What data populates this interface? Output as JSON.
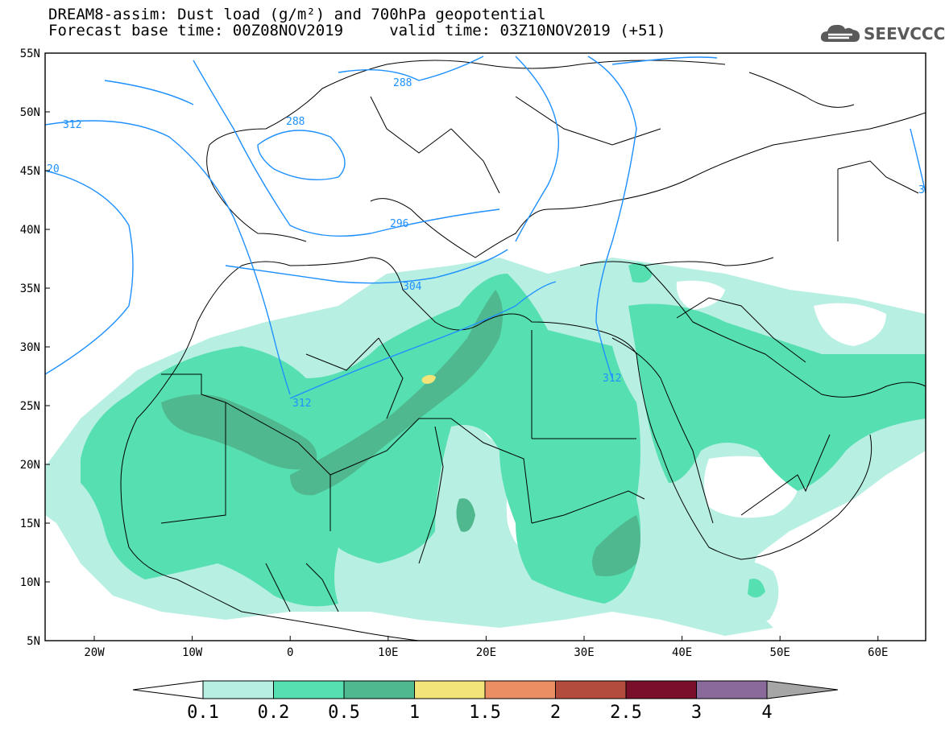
{
  "header": {
    "line1": "DREAM8-assim: Dust load (g/m²) and 700hPa geopotential",
    "line2": "Forecast base time: 00Z08NOV2019     valid time: 03Z10NOV2019 (+51)"
  },
  "logo": {
    "text": "SEEVCCC",
    "icon": "cloud-icon"
  },
  "axes": {
    "lat_labels": [
      "55N",
      "50N",
      "45N",
      "40N",
      "35N",
      "30N",
      "25N",
      "20N",
      "15N",
      "10N",
      "5N"
    ],
    "lon_labels": [
      "20W",
      "10W",
      "0",
      "10E",
      "20E",
      "30E",
      "40E",
      "50E",
      "60E"
    ]
  },
  "contour_labels": [
    "312",
    "20",
    "288",
    "288",
    "296",
    "304",
    "312",
    "312",
    "3"
  ],
  "colorbar": {
    "labels": [
      "0.1",
      "0.2",
      "0.5",
      "1",
      "1.5",
      "2",
      "2.5",
      "3",
      "4"
    ],
    "colors": [
      "#b8efe3",
      "#56dfb1",
      "#4fb88f",
      "#f2e479",
      "#ec8e63",
      "#b34c3c",
      "#7a0f2a",
      "#8a6a9b"
    ],
    "under_color": "#ffffff",
    "over_color": "#a6a6a6"
  },
  "colors": {
    "contour": "#1e90ff",
    "border": "#000000"
  }
}
